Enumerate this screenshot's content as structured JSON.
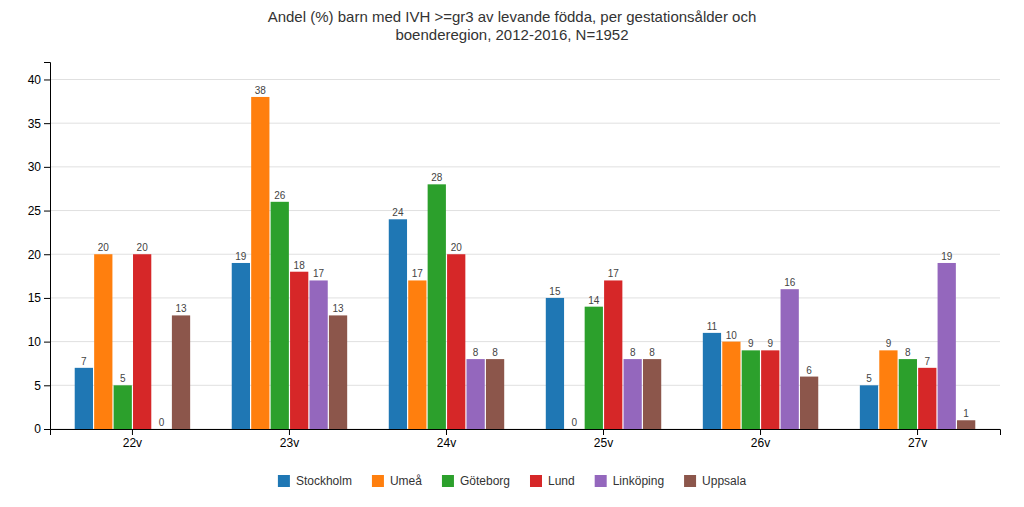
{
  "chart_data": {
    "type": "bar",
    "title": "Andel (%) barn med IVH >=gr3 av levande födda, per gestationsålder och\nboenderegion, 2012-2016, N=1952",
    "categories": [
      "22v",
      "23v",
      "24v",
      "25v",
      "26v",
      "27v"
    ],
    "series": [
      {
        "name": "Stockholm",
        "values": [
          7,
          19,
          24,
          15,
          11,
          5
        ]
      },
      {
        "name": "Umeå",
        "values": [
          20,
          38,
          17,
          0,
          10,
          9
        ]
      },
      {
        "name": "Göteborg",
        "values": [
          5,
          26,
          28,
          14,
          9,
          8
        ]
      },
      {
        "name": "Lund",
        "values": [
          20,
          18,
          20,
          17,
          9,
          7
        ]
      },
      {
        "name": "Linköping",
        "values": [
          0,
          17,
          8,
          8,
          16,
          19
        ]
      },
      {
        "name": "Uppsala",
        "values": [
          13,
          13,
          8,
          8,
          6,
          1
        ]
      }
    ],
    "ylim": [
      0,
      42
    ],
    "yticks": [
      0,
      5,
      10,
      15,
      20,
      25,
      30,
      35,
      40
    ],
    "grid": true,
    "legend": "bottom",
    "data_labels": true
  }
}
